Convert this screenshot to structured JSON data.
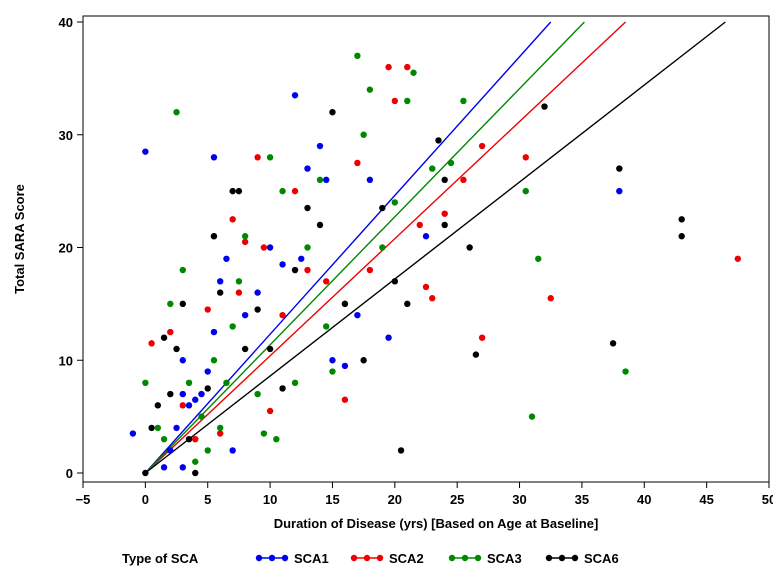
{
  "chart_data": {
    "type": "scatter",
    "xlabel": "Duration of Disease (yrs) [Based on Age at Baseline]",
    "ylabel": "Total SARA Score",
    "xlim": [
      -5,
      50
    ],
    "ylim": [
      0,
      40
    ],
    "xticks": [
      "−5",
      "0",
      "5",
      "10",
      "15",
      "20",
      "25",
      "30",
      "35",
      "40",
      "45",
      "50"
    ],
    "xtick_values": [
      -5,
      0,
      5,
      10,
      15,
      20,
      25,
      30,
      35,
      40,
      45,
      50
    ],
    "yticks": [
      "0",
      "10",
      "20",
      "30",
      "40"
    ],
    "ytick_values": [
      0,
      10,
      20,
      30,
      40
    ],
    "grid": false,
    "legend": {
      "title": "Type of SCA",
      "placement": "bottom"
    },
    "series": [
      {
        "name": "SCA1",
        "color": "#0000ee",
        "fit_line": {
          "x": [
            0,
            32.5
          ],
          "y": [
            0,
            40
          ]
        },
        "points": [
          [
            -1,
            3.5
          ],
          [
            0,
            28.5
          ],
          [
            1.5,
            0.5
          ],
          [
            2,
            2
          ],
          [
            3,
            0.5
          ],
          [
            2.5,
            4
          ],
          [
            3,
            7
          ],
          [
            3.5,
            6
          ],
          [
            4,
            6.5
          ],
          [
            3,
            10
          ],
          [
            4.5,
            7
          ],
          [
            5,
            9
          ],
          [
            5.5,
            12.5
          ],
          [
            5.5,
            28
          ],
          [
            6,
            17
          ],
          [
            6.5,
            19
          ],
          [
            7,
            2
          ],
          [
            8,
            14
          ],
          [
            9,
            16
          ],
          [
            10,
            20
          ],
          [
            11,
            18.5
          ],
          [
            12,
            33.5
          ],
          [
            12.5,
            19
          ],
          [
            13,
            27
          ],
          [
            14,
            29
          ],
          [
            14.5,
            26
          ],
          [
            15,
            10
          ],
          [
            16,
            9.5
          ],
          [
            17,
            14
          ],
          [
            18,
            26
          ],
          [
            19.5,
            12
          ],
          [
            22.5,
            21
          ],
          [
            38,
            25
          ]
        ]
      },
      {
        "name": "SCA2",
        "color": "#ee0000",
        "fit_line": {
          "x": [
            0,
            38.5
          ],
          "y": [
            0,
            40
          ]
        },
        "points": [
          [
            0.5,
            11.5
          ],
          [
            2,
            12.5
          ],
          [
            3,
            6
          ],
          [
            4,
            3
          ],
          [
            5,
            14.5
          ],
          [
            5.5,
            21
          ],
          [
            6,
            3.5
          ],
          [
            7,
            22.5
          ],
          [
            7.5,
            16
          ],
          [
            8,
            20.5
          ],
          [
            9,
            28
          ],
          [
            9.5,
            20
          ],
          [
            10,
            5.5
          ],
          [
            11,
            14
          ],
          [
            12,
            25
          ],
          [
            13,
            18
          ],
          [
            14.5,
            17
          ],
          [
            16,
            6.5
          ],
          [
            17,
            27.5
          ],
          [
            18,
            18
          ],
          [
            19.5,
            36
          ],
          [
            20,
            33
          ],
          [
            21,
            36
          ],
          [
            22,
            22
          ],
          [
            22.5,
            16.5
          ],
          [
            23,
            15.5
          ],
          [
            24,
            23
          ],
          [
            25.5,
            26
          ],
          [
            27,
            29
          ],
          [
            27,
            12
          ],
          [
            30.5,
            28
          ],
          [
            32.5,
            15.5
          ],
          [
            47.5,
            19
          ]
        ]
      },
      {
        "name": "SCA3",
        "color": "#008800",
        "fit_line": {
          "x": [
            0,
            35.2
          ],
          "y": [
            0,
            40
          ]
        },
        "points": [
          [
            0,
            8
          ],
          [
            1,
            4
          ],
          [
            1.5,
            3
          ],
          [
            2,
            15
          ],
          [
            2.5,
            32
          ],
          [
            3,
            18
          ],
          [
            3.5,
            8
          ],
          [
            4,
            1
          ],
          [
            4.5,
            5
          ],
          [
            5,
            2
          ],
          [
            5.5,
            10
          ],
          [
            6,
            4
          ],
          [
            6.5,
            8
          ],
          [
            7,
            13
          ],
          [
            7.5,
            17
          ],
          [
            8,
            21
          ],
          [
            9,
            7
          ],
          [
            9.5,
            3.5
          ],
          [
            10,
            28
          ],
          [
            10.5,
            3
          ],
          [
            11,
            25
          ],
          [
            12,
            8
          ],
          [
            13,
            20
          ],
          [
            14,
            26
          ],
          [
            14.5,
            13
          ],
          [
            15,
            9
          ],
          [
            16,
            15
          ],
          [
            17,
            37
          ],
          [
            17.5,
            30
          ],
          [
            18,
            34
          ],
          [
            19,
            20
          ],
          [
            20,
            24
          ],
          [
            21,
            33
          ],
          [
            21.5,
            35.5
          ],
          [
            23,
            27
          ],
          [
            24.5,
            27.5
          ],
          [
            25.5,
            33
          ],
          [
            30.5,
            25
          ],
          [
            31,
            5
          ],
          [
            31.5,
            19
          ],
          [
            38.5,
            9
          ]
        ]
      },
      {
        "name": "SCA6",
        "color": "#000000",
        "fit_line": {
          "x": [
            0,
            46.5
          ],
          "y": [
            0,
            40
          ]
        },
        "points": [
          [
            0,
            0
          ],
          [
            0.5,
            4
          ],
          [
            1,
            6
          ],
          [
            1.5,
            12
          ],
          [
            2,
            7
          ],
          [
            2.5,
            11
          ],
          [
            3,
            15
          ],
          [
            3.5,
            3
          ],
          [
            4,
            0
          ],
          [
            5,
            7.5
          ],
          [
            5.5,
            21
          ],
          [
            6,
            16
          ],
          [
            7,
            25
          ],
          [
            7.5,
            25
          ],
          [
            8,
            11
          ],
          [
            9,
            14.5
          ],
          [
            10,
            11
          ],
          [
            11,
            7.5
          ],
          [
            12,
            18
          ],
          [
            13,
            23.5
          ],
          [
            14,
            22
          ],
          [
            15,
            32
          ],
          [
            16,
            15
          ],
          [
            17.5,
            10
          ],
          [
            19,
            23.5
          ],
          [
            20,
            17
          ],
          [
            20.5,
            2
          ],
          [
            21,
            15
          ],
          [
            23.5,
            29.5
          ],
          [
            24,
            26
          ],
          [
            24,
            22
          ],
          [
            26,
            20
          ],
          [
            26.5,
            10.5
          ],
          [
            32,
            32.5
          ],
          [
            37.5,
            11.5
          ],
          [
            38,
            27
          ],
          [
            43,
            22.5
          ],
          [
            43,
            21
          ]
        ]
      }
    ]
  }
}
